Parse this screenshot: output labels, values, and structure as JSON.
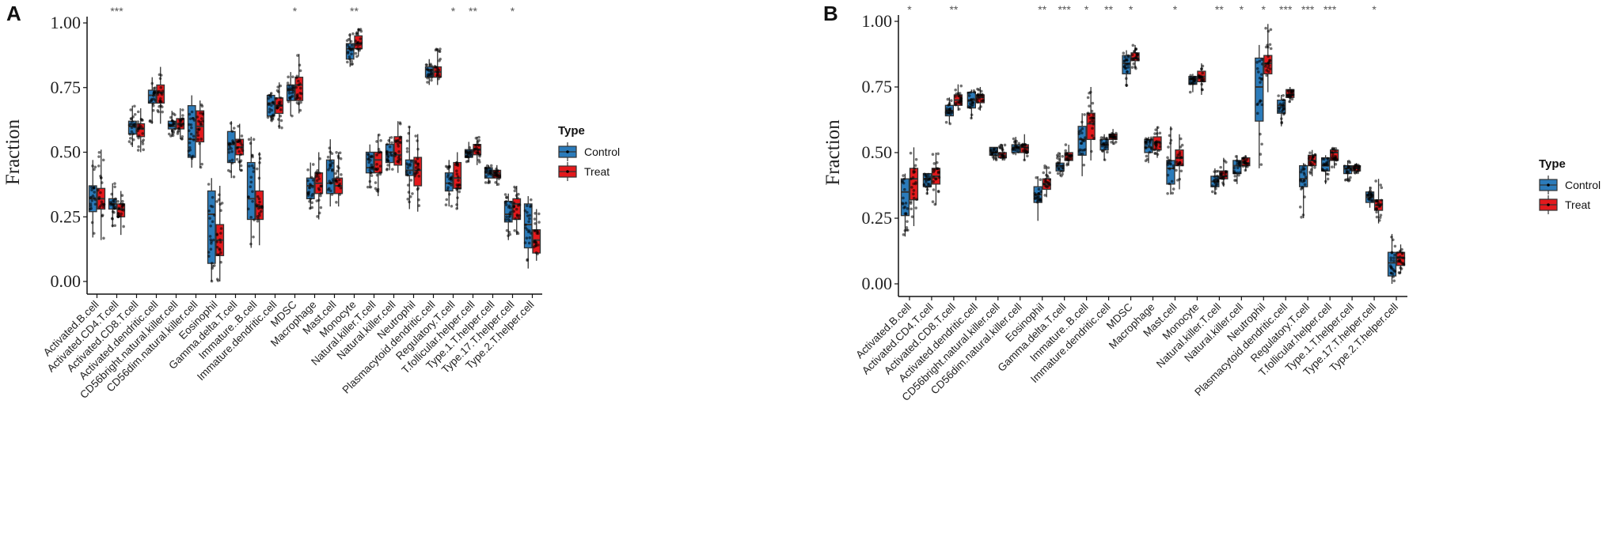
{
  "chart_data": [
    {
      "panel_label": "A",
      "type": "box",
      "ylabel": "Fraction",
      "xlabel": "",
      "ylim": [
        0,
        1
      ],
      "yticks": [
        "0.00",
        "0.25",
        "0.50",
        "0.75",
        "1.00"
      ],
      "legend": {
        "title": "Type",
        "entries": [
          "Control",
          "Treat"
        ],
        "placement": "right"
      },
      "colors": {
        "Control": "#2b7bba",
        "Treat": "#e3191c"
      },
      "box_stat_order": [
        "q1",
        "median",
        "q3",
        "whisker_low",
        "whisker_high"
      ],
      "categories": [
        "Activated.B.cell",
        "Activated.CD4.T.cell",
        "Activated.CD8.T.cell",
        "Activated.dendritic.cell",
        "CD56bright.natural.killer.cell",
        "CD56dim.natural.killer.cell",
        "Eosinophil",
        "Gamma.delta.T.cell",
        "Immature..B.cell",
        "Immature.dendritic.cell",
        "MDSC",
        "Macrophage",
        "Mast.cell",
        "Monocyte",
        "Natural.killer.T.cell",
        "Natural.killer.cell",
        "Neutrophil",
        "Plasmacytoid.dendritic.cell",
        "Regulatory.T.cell",
        "T.follicular.helper.cell",
        "Type.1.T.helper.cell",
        "Type.17.T.helper.cell",
        "Type.2.T.helper.cell"
      ],
      "significance": [
        "",
        "***",
        "",
        "",
        "",
        "",
        "",
        "",
        "",
        "",
        "*",
        "",
        "",
        "**",
        "",
        "",
        "",
        "",
        "*",
        "**",
        "",
        "*",
        ""
      ],
      "series": [
        {
          "name": "Control",
          "boxes": [
            [
              0.27,
              0.32,
              0.37,
              0.17,
              0.47
            ],
            [
              0.28,
              0.3,
              0.32,
              0.21,
              0.38
            ],
            [
              0.57,
              0.6,
              0.62,
              0.52,
              0.68
            ],
            [
              0.69,
              0.72,
              0.74,
              0.61,
              0.79
            ],
            [
              0.59,
              0.6,
              0.62,
              0.56,
              0.66
            ],
            [
              0.48,
              0.55,
              0.68,
              0.44,
              0.72
            ],
            [
              0.07,
              0.26,
              0.35,
              0.0,
              0.4
            ],
            [
              0.46,
              0.53,
              0.58,
              0.4,
              0.62
            ],
            [
              0.24,
              0.32,
              0.46,
              0.13,
              0.56
            ],
            [
              0.64,
              0.69,
              0.72,
              0.62,
              0.73
            ],
            [
              0.7,
              0.74,
              0.76,
              0.64,
              0.81
            ],
            [
              0.32,
              0.37,
              0.4,
              0.28,
              0.46
            ],
            [
              0.34,
              0.38,
              0.47,
              0.29,
              0.55
            ],
            [
              0.86,
              0.9,
              0.92,
              0.83,
              0.96
            ],
            [
              0.42,
              0.44,
              0.5,
              0.36,
              0.53
            ],
            [
              0.46,
              0.5,
              0.53,
              0.43,
              0.56
            ],
            [
              0.41,
              0.43,
              0.47,
              0.28,
              0.6
            ],
            [
              0.79,
              0.82,
              0.83,
              0.76,
              0.86
            ],
            [
              0.35,
              0.38,
              0.42,
              0.29,
              0.47
            ],
            [
              0.48,
              0.5,
              0.51,
              0.46,
              0.54
            ],
            [
              0.4,
              0.42,
              0.44,
              0.38,
              0.45
            ],
            [
              0.23,
              0.26,
              0.31,
              0.16,
              0.34
            ],
            [
              0.13,
              0.22,
              0.3,
              0.05,
              0.33
            ]
          ]
        },
        {
          "name": "Treat",
          "boxes": [
            [
              0.28,
              0.32,
              0.36,
              0.16,
              0.51
            ],
            [
              0.25,
              0.28,
              0.3,
              0.18,
              0.35
            ],
            [
              0.56,
              0.59,
              0.61,
              0.5,
              0.67
            ],
            [
              0.69,
              0.73,
              0.76,
              0.61,
              0.83
            ],
            [
              0.59,
              0.61,
              0.63,
              0.55,
              0.67
            ],
            [
              0.54,
              0.6,
              0.66,
              0.44,
              0.7
            ],
            [
              0.1,
              0.16,
              0.22,
              0.0,
              0.37
            ],
            [
              0.49,
              0.52,
              0.55,
              0.43,
              0.61
            ],
            [
              0.24,
              0.29,
              0.35,
              0.14,
              0.5
            ],
            [
              0.65,
              0.68,
              0.71,
              0.59,
              0.77
            ],
            [
              0.7,
              0.76,
              0.79,
              0.65,
              0.88
            ],
            [
              0.34,
              0.38,
              0.42,
              0.24,
              0.5
            ],
            [
              0.34,
              0.37,
              0.4,
              0.29,
              0.5
            ],
            [
              0.9,
              0.92,
              0.95,
              0.87,
              0.98
            ],
            [
              0.42,
              0.47,
              0.5,
              0.33,
              0.57
            ],
            [
              0.45,
              0.49,
              0.56,
              0.42,
              0.62
            ],
            [
              0.37,
              0.43,
              0.48,
              0.27,
              0.57
            ],
            [
              0.79,
              0.81,
              0.83,
              0.76,
              0.9
            ],
            [
              0.36,
              0.4,
              0.46,
              0.28,
              0.5
            ],
            [
              0.49,
              0.51,
              0.53,
              0.45,
              0.56
            ],
            [
              0.4,
              0.42,
              0.43,
              0.37,
              0.45
            ],
            [
              0.24,
              0.3,
              0.32,
              0.18,
              0.37
            ],
            [
              0.11,
              0.16,
              0.2,
              0.08,
              0.28
            ]
          ]
        }
      ]
    },
    {
      "panel_label": "B",
      "type": "box",
      "ylabel": "Fraction",
      "xlabel": "",
      "ylim": [
        0,
        1
      ],
      "yticks": [
        "0.00",
        "0.25",
        "0.50",
        "0.75",
        "1.00"
      ],
      "legend": {
        "title": "Type",
        "entries": [
          "Control",
          "Treat"
        ],
        "placement": "right"
      },
      "colors": {
        "Control": "#2b7bba",
        "Treat": "#e3191c"
      },
      "box_stat_order": [
        "q1",
        "median",
        "q3",
        "whisker_low",
        "whisker_high"
      ],
      "categories": [
        "Activated.B.cell",
        "Activated.CD4.T.cell",
        "Activated.CD8.T.cell",
        "Activated.dendritic.cell",
        "CD56bright.natural.killer.cell",
        "CD56dim.natural.killer.cell",
        "Eosinophil",
        "Gamma.delta.T.cell",
        "Immature..B.cell",
        "Immature.dendritic.cell",
        "MDSC",
        "Macrophage",
        "Mast.cell",
        "Monocyte",
        "Natural.killer.T.cell",
        "Natural.killer.cell",
        "Neutrophil",
        "Plasmacytoid.dendritic.cell",
        "Regulatory.T.cell",
        "T.follicular.helper.cell",
        "Type.1.T.helper.cell",
        "Type.17.T.helper.cell",
        "Type.2.T.helper.cell"
      ],
      "significance": [
        "*",
        "",
        "**",
        "",
        "",
        "",
        "**",
        "***",
        "*",
        "**",
        "*",
        "",
        "*",
        "",
        "**",
        "*",
        "*",
        "***",
        "***",
        "***",
        "",
        "*",
        ""
      ],
      "series": [
        {
          "name": "Control",
          "boxes": [
            [
              0.26,
              0.35,
              0.4,
              0.18,
              0.42
            ],
            [
              0.37,
              0.4,
              0.42,
              0.34,
              0.42
            ],
            [
              0.64,
              0.66,
              0.68,
              0.61,
              0.71
            ],
            [
              0.67,
              0.7,
              0.73,
              0.63,
              0.74
            ],
            [
              0.49,
              0.5,
              0.52,
              0.47,
              0.52
            ],
            [
              0.5,
              0.52,
              0.53,
              0.49,
              0.56
            ],
            [
              0.31,
              0.34,
              0.37,
              0.24,
              0.41
            ],
            [
              0.43,
              0.45,
              0.46,
              0.41,
              0.5
            ],
            [
              0.49,
              0.55,
              0.6,
              0.41,
              0.65
            ],
            [
              0.51,
              0.53,
              0.55,
              0.47,
              0.57
            ],
            [
              0.8,
              0.84,
              0.87,
              0.75,
              0.89
            ],
            [
              0.5,
              0.52,
              0.55,
              0.46,
              0.56
            ],
            [
              0.38,
              0.44,
              0.47,
              0.34,
              0.6
            ],
            [
              0.76,
              0.78,
              0.79,
              0.73,
              0.8
            ],
            [
              0.37,
              0.39,
              0.41,
              0.34,
              0.44
            ],
            [
              0.42,
              0.45,
              0.47,
              0.38,
              0.49
            ],
            [
              0.62,
              0.75,
              0.86,
              0.44,
              0.91
            ],
            [
              0.65,
              0.68,
              0.7,
              0.6,
              0.72
            ],
            [
              0.37,
              0.4,
              0.45,
              0.25,
              0.46
            ],
            [
              0.43,
              0.45,
              0.48,
              0.38,
              0.49
            ],
            [
              0.42,
              0.44,
              0.45,
              0.39,
              0.47
            ],
            [
              0.31,
              0.33,
              0.35,
              0.29,
              0.37
            ],
            [
              0.03,
              0.08,
              0.12,
              0.0,
              0.19
            ]
          ]
        },
        {
          "name": "Treat",
          "boxes": [
            [
              0.32,
              0.4,
              0.44,
              0.22,
              0.52
            ],
            [
              0.38,
              0.41,
              0.44,
              0.3,
              0.5
            ],
            [
              0.68,
              0.7,
              0.72,
              0.66,
              0.76
            ],
            [
              0.69,
              0.71,
              0.72,
              0.66,
              0.75
            ],
            [
              0.48,
              0.49,
              0.5,
              0.47,
              0.53
            ],
            [
              0.5,
              0.52,
              0.53,
              0.47,
              0.57
            ],
            [
              0.36,
              0.38,
              0.4,
              0.33,
              0.45
            ],
            [
              0.47,
              0.49,
              0.5,
              0.45,
              0.53
            ],
            [
              0.55,
              0.61,
              0.65,
              0.47,
              0.75
            ],
            [
              0.55,
              0.56,
              0.57,
              0.53,
              0.59
            ],
            [
              0.85,
              0.86,
              0.88,
              0.82,
              0.91
            ],
            [
              0.51,
              0.54,
              0.56,
              0.48,
              0.6
            ],
            [
              0.45,
              0.48,
              0.51,
              0.36,
              0.57
            ],
            [
              0.77,
              0.79,
              0.81,
              0.72,
              0.84
            ],
            [
              0.4,
              0.41,
              0.43,
              0.37,
              0.48
            ],
            [
              0.45,
              0.46,
              0.48,
              0.43,
              0.49
            ],
            [
              0.8,
              0.84,
              0.87,
              0.73,
              0.99
            ],
            [
              0.71,
              0.72,
              0.74,
              0.69,
              0.75
            ],
            [
              0.45,
              0.47,
              0.49,
              0.41,
              0.51
            ],
            [
              0.47,
              0.5,
              0.51,
              0.44,
              0.52
            ],
            [
              0.43,
              0.44,
              0.45,
              0.42,
              0.46
            ],
            [
              0.28,
              0.3,
              0.32,
              0.23,
              0.4
            ],
            [
              0.07,
              0.1,
              0.12,
              0.04,
              0.15
            ]
          ]
        }
      ]
    }
  ]
}
